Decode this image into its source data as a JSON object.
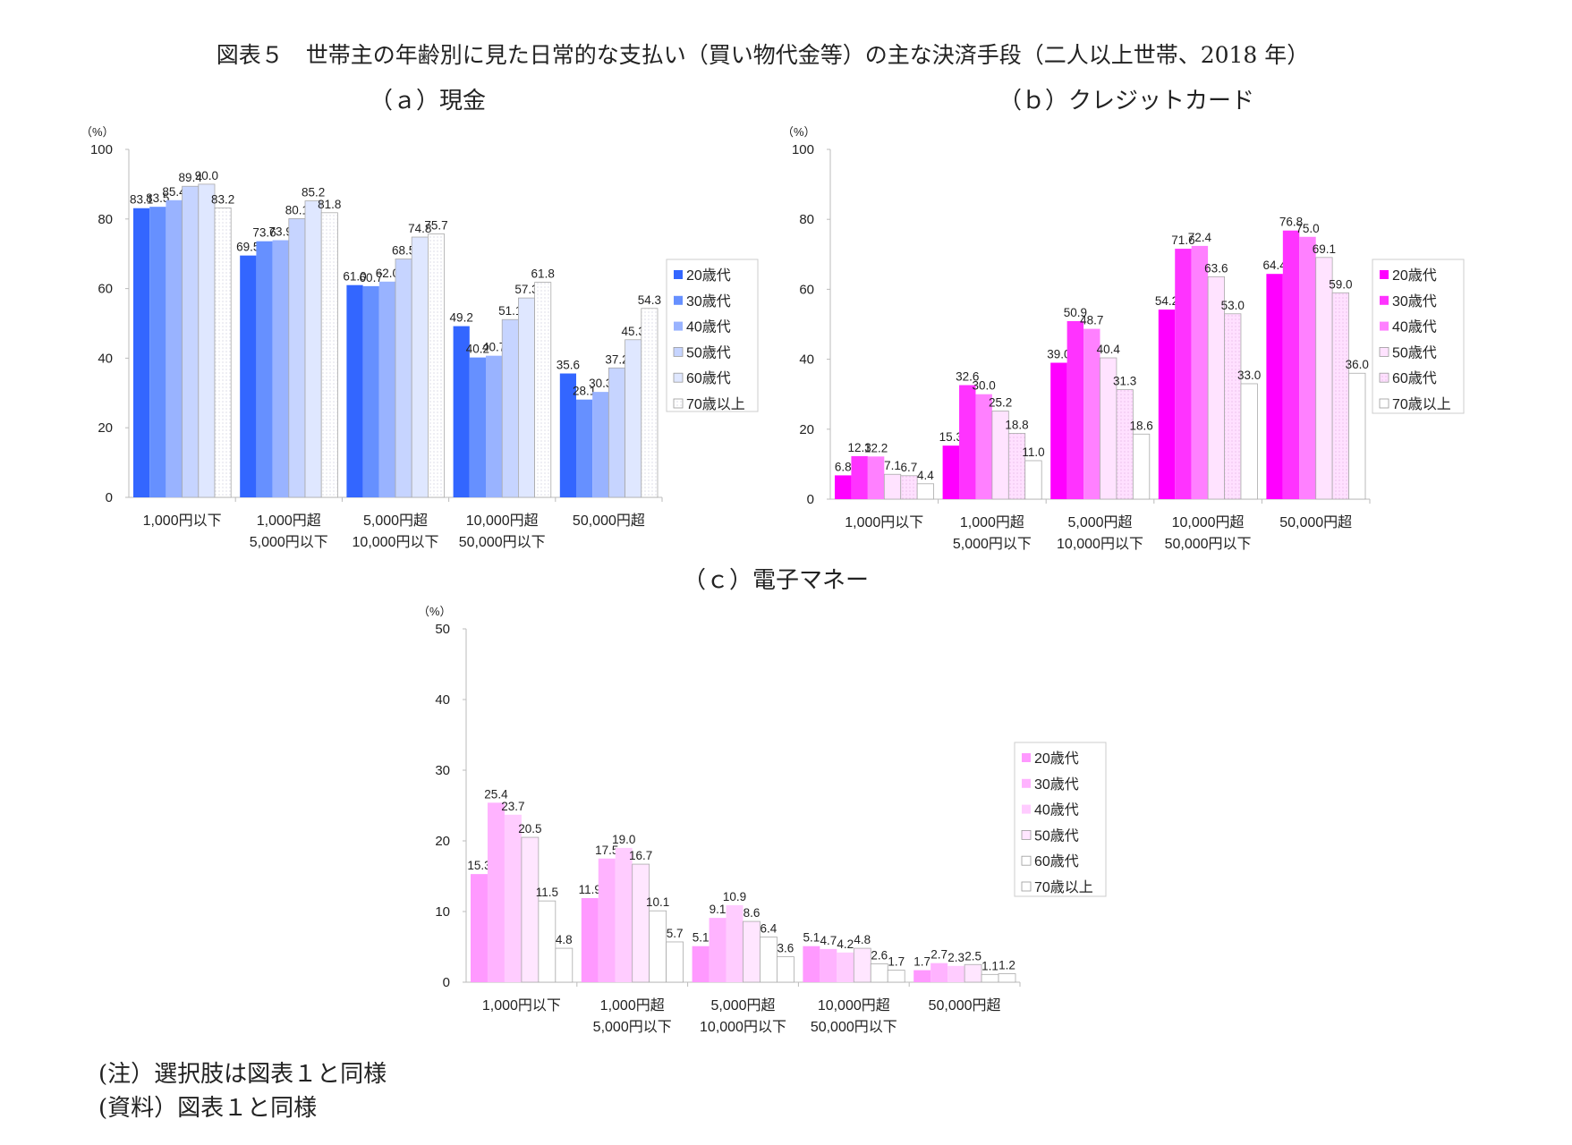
{
  "title": "図表５　世帯主の年齢別に見た日常的な支払い（買い物代金等）の主な決済手段（二人以上世帯、2018 年）",
  "notes": [
    "(注）選択肢は図表１と同様",
    "(資料）図表１と同様"
  ],
  "chart_data": [
    {
      "type": "bar",
      "title": "（ａ）現金",
      "ylabel": "（%）",
      "ylim": [
        0,
        100
      ],
      "yticks": [
        0,
        20,
        40,
        60,
        80,
        100
      ],
      "grid": false,
      "legend_position": "right",
      "categories": [
        [
          "1,000円以下"
        ],
        [
          "1,000円超",
          "5,000円以下"
        ],
        [
          "5,000円超",
          "10,000円以下"
        ],
        [
          "10,000円超",
          "50,000円以下"
        ],
        [
          "50,000円超"
        ]
      ],
      "series": [
        {
          "name": "20歳代",
          "color": "#3366ff",
          "values": [
            83.1,
            69.5,
            61.0,
            49.2,
            35.6
          ]
        },
        {
          "name": "30歳代",
          "color": "#6690ff",
          "values": [
            83.5,
            73.6,
            60.7,
            40.2,
            28.1
          ]
        },
        {
          "name": "40歳代",
          "color": "#99b3ff",
          "values": [
            85.4,
            73.9,
            62.0,
            40.7,
            30.3
          ]
        },
        {
          "name": "50歳代",
          "color": "#c6d4ff",
          "values": [
            89.4,
            80.1,
            68.5,
            51.1,
            37.2
          ]
        },
        {
          "name": "60歳代",
          "color": "#dfe7ff",
          "values": [
            90.0,
            85.2,
            74.8,
            57.3,
            45.3
          ]
        },
        {
          "name": "70歳以上",
          "color": "#f6f8ff",
          "values": [
            83.2,
            81.8,
            75.7,
            61.8,
            54.3
          ]
        }
      ]
    },
    {
      "type": "bar",
      "title": "（ｂ）クレジットカード",
      "ylabel": "（%）",
      "ylim": [
        0,
        100
      ],
      "yticks": [
        0,
        20,
        40,
        60,
        80,
        100
      ],
      "grid": false,
      "legend_position": "right",
      "categories": [
        [
          "1,000円以下"
        ],
        [
          "1,000円超",
          "5,000円以下"
        ],
        [
          "5,000円超",
          "10,000円以下"
        ],
        [
          "10,000円超",
          "50,000円以下"
        ],
        [
          "50,000円超"
        ]
      ],
      "series": [
        {
          "name": "20歳代",
          "color": "#ff00ff",
          "values": [
            6.8,
            15.3,
            39.0,
            54.2,
            64.4
          ]
        },
        {
          "name": "30歳代",
          "color": "#ff33ff",
          "values": [
            12.3,
            32.6,
            50.9,
            71.6,
            76.8
          ]
        },
        {
          "name": "40歳代",
          "color": "#ff80ff",
          "values": [
            12.2,
            30.0,
            48.7,
            72.4,
            75.0
          ]
        },
        {
          "name": "50歳代",
          "color": "#ffe3ff",
          "values": [
            7.1,
            25.2,
            40.4,
            63.6,
            69.1
          ]
        },
        {
          "name": "60歳代",
          "color": "#ffd9ff",
          "values": [
            6.7,
            18.8,
            31.3,
            53.0,
            59.0
          ]
        },
        {
          "name": "70歳以上",
          "color": "#ffffff",
          "values": [
            4.4,
            11.0,
            18.6,
            33.0,
            36.0
          ]
        }
      ]
    },
    {
      "type": "bar",
      "title": "（ｃ）電子マネー",
      "ylabel": "（%）",
      "ylim": [
        0,
        50
      ],
      "yticks": [
        0,
        10,
        20,
        30,
        40,
        50
      ],
      "grid": false,
      "legend_position": "right",
      "categories": [
        [
          "1,000円以下"
        ],
        [
          "1,000円超",
          "5,000円以下"
        ],
        [
          "5,000円超",
          "10,000円以下"
        ],
        [
          "10,000円超",
          "50,000円以下"
        ],
        [
          "50,000円超"
        ]
      ],
      "series": [
        {
          "name": "20歳代",
          "color": "#ff99ff",
          "values": [
            15.3,
            11.9,
            5.1,
            5.1,
            1.7
          ]
        },
        {
          "name": "30歳代",
          "color": "#ffb3ff",
          "values": [
            25.4,
            17.5,
            9.1,
            4.7,
            2.7
          ]
        },
        {
          "name": "40歳代",
          "color": "#ffccff",
          "values": [
            23.7,
            19.0,
            10.9,
            4.2,
            2.3
          ]
        },
        {
          "name": "50歳代",
          "color": "#ffe6ff",
          "values": [
            20.5,
            16.7,
            8.6,
            4.8,
            2.5
          ]
        },
        {
          "name": "60歳代",
          "color": "#ffffff",
          "values": [
            11.5,
            10.1,
            6.4,
            2.6,
            1.1
          ]
        },
        {
          "name": "70歳以上",
          "color": "#ffffff",
          "values": [
            4.8,
            5.7,
            3.6,
            1.7,
            1.2
          ]
        }
      ]
    }
  ]
}
